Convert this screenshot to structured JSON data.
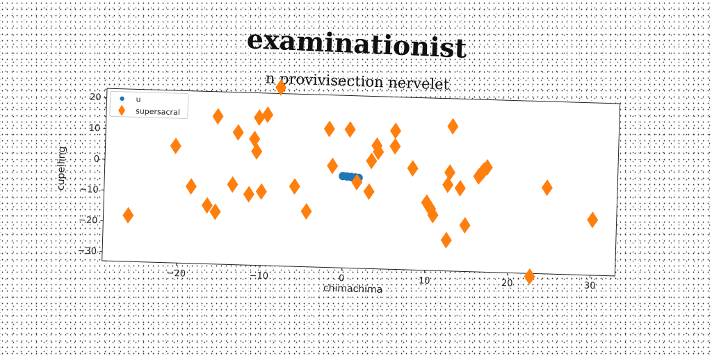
{
  "chart_data": {
    "type": "scatter",
    "title": "examinationist",
    "subtitle": "n provivisection nervelet",
    "xlabel": "chimachima",
    "ylabel": "cupelling",
    "xlim": [
      -29,
      33
    ],
    "ylim": [
      -33,
      23
    ],
    "xticks": [
      -20,
      -10,
      0,
      10,
      20,
      30
    ],
    "xtick_labels": [
      "−20",
      "−10",
      "0",
      "10",
      "20",
      "30"
    ],
    "yticks": [
      20,
      10,
      0,
      -10,
      -20,
      -30
    ],
    "ytick_labels": [
      "20",
      "10",
      "0",
      "−10",
      "−20",
      "−30"
    ],
    "grid": false,
    "legend_position": "top-left",
    "series": [
      {
        "name": "u",
        "marker": "circle",
        "color": "#1f77b4",
        "x": [
          -0.2,
          0.3,
          0.8,
          1.3,
          1.7
        ],
        "y": [
          -3.2,
          -3.3,
          -3.4,
          -3.5,
          -3.6
        ]
      },
      {
        "name": "supersacral",
        "marker": "diamond",
        "color": "#ff7f0e",
        "x": [
          -26,
          -20.5,
          -18.5,
          -16.5,
          -15.5,
          -15.5,
          -13.5,
          -13,
          -11.5,
          -11,
          -10.7,
          -10.5,
          -10,
          -9.5,
          -8,
          -6,
          -4.5,
          -2,
          -1.5,
          0.5,
          1.5,
          3,
          3.2,
          3.8,
          4,
          6,
          6,
          8.2,
          10,
          10.5,
          10.8,
          12.5,
          12.5,
          12.7,
          12.9,
          14,
          14.7,
          16.2,
          16.5,
          16.8,
          17.2,
          22.7,
          24.5,
          30.1
        ],
        "y": [
          -18,
          5,
          -8,
          -14,
          -16,
          15,
          -7,
          10,
          -10,
          8,
          4,
          15,
          -9,
          16,
          25,
          -7,
          -15,
          12,
          0,
          12,
          -5,
          -8,
          2,
          7,
          5,
          12,
          7,
          0,
          -11,
          -13,
          -15,
          -23,
          -5,
          -1,
          14,
          -6,
          -18,
          -2,
          -1,
          0,
          1,
          -34,
          -5,
          -15
        ]
      }
    ]
  }
}
